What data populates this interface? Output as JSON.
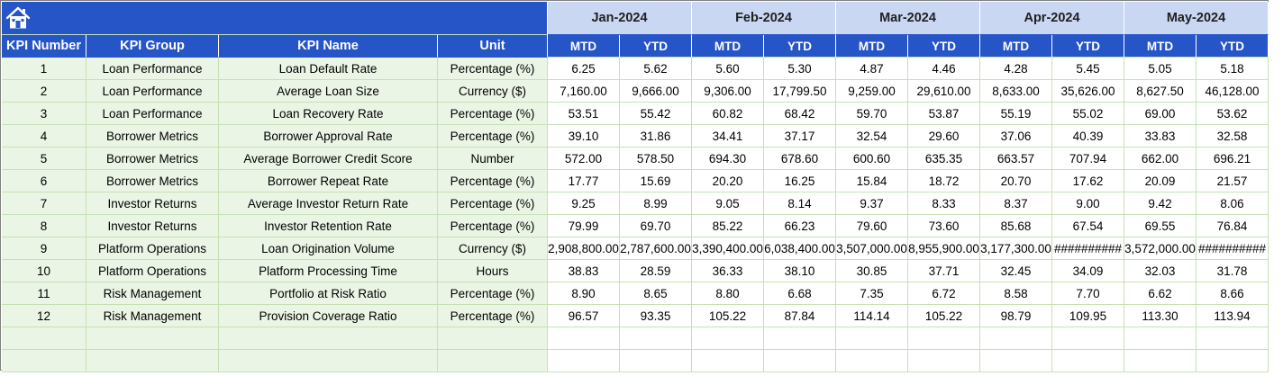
{
  "colors": {
    "header_blue": "#2655c8",
    "month_bg": "#c9d7f2",
    "left_bg": "#ebf5e6",
    "gridline": "#c6e0b4"
  },
  "icons": {
    "home": "home-icon"
  },
  "months": [
    "Jan-2024",
    "Feb-2024",
    "Mar-2024",
    "Apr-2024",
    "May-2024"
  ],
  "columns": {
    "kpi_number": "KPI Number",
    "kpi_group": "KPI Group",
    "kpi_name": "KPI Name",
    "unit": "Unit",
    "mtd": "MTD",
    "ytd": "YTD"
  },
  "rows": [
    {
      "num": "1",
      "group": "Loan Performance",
      "name": "Loan Default Rate",
      "unit": "Percentage (%)",
      "values": [
        "6.25",
        "5.62",
        "5.60",
        "5.30",
        "4.87",
        "4.46",
        "4.28",
        "5.45",
        "5.05",
        "5.18"
      ]
    },
    {
      "num": "2",
      "group": "Loan Performance",
      "name": "Average Loan Size",
      "unit": "Currency ($)",
      "values": [
        "7,160.00",
        "9,666.00",
        "9,306.00",
        "17,799.50",
        "9,259.00",
        "29,610.00",
        "8,633.00",
        "35,626.00",
        "8,627.50",
        "46,128.00"
      ]
    },
    {
      "num": "3",
      "group": "Loan Performance",
      "name": "Loan Recovery Rate",
      "unit": "Percentage (%)",
      "values": [
        "53.51",
        "55.42",
        "60.82",
        "68.42",
        "59.70",
        "53.87",
        "55.19",
        "55.02",
        "69.00",
        "53.62"
      ]
    },
    {
      "num": "4",
      "group": "Borrower Metrics",
      "name": "Borrower Approval Rate",
      "unit": "Percentage (%)",
      "values": [
        "39.10",
        "31.86",
        "34.41",
        "37.17",
        "32.54",
        "29.60",
        "37.06",
        "40.39",
        "33.83",
        "32.58"
      ]
    },
    {
      "num": "5",
      "group": "Borrower Metrics",
      "name": "Average Borrower Credit Score",
      "unit": "Number",
      "values": [
        "572.00",
        "578.50",
        "694.30",
        "678.60",
        "600.60",
        "635.35",
        "663.57",
        "707.94",
        "662.00",
        "696.21"
      ]
    },
    {
      "num": "6",
      "group": "Borrower Metrics",
      "name": "Borrower Repeat Rate",
      "unit": "Percentage (%)",
      "values": [
        "17.77",
        "15.69",
        "20.20",
        "16.25",
        "15.84",
        "18.72",
        "20.70",
        "17.62",
        "20.09",
        "21.57"
      ]
    },
    {
      "num": "7",
      "group": "Investor Returns",
      "name": "Average Investor Return Rate",
      "unit": "Percentage (%)",
      "values": [
        "9.25",
        "8.99",
        "9.05",
        "8.14",
        "9.37",
        "8.33",
        "8.37",
        "9.00",
        "9.42",
        "8.06"
      ]
    },
    {
      "num": "8",
      "group": "Investor Returns",
      "name": "Investor Retention Rate",
      "unit": "Percentage (%)",
      "values": [
        "79.99",
        "69.70",
        "85.22",
        "66.23",
        "79.60",
        "73.60",
        "85.68",
        "67.54",
        "69.55",
        "76.84"
      ]
    },
    {
      "num": "9",
      "group": "Platform Operations",
      "name": "Loan Origination Volume",
      "unit": "Currency ($)",
      "values": [
        "2,908,800.00",
        "2,787,600.00",
        "3,390,400.00",
        "6,038,400.00",
        "3,507,000.00",
        "8,955,900.00",
        "3,177,300.00",
        "##########",
        "3,572,000.00",
        "##########"
      ]
    },
    {
      "num": "10",
      "group": "Platform Operations",
      "name": "Platform Processing Time",
      "unit": "Hours",
      "values": [
        "38.83",
        "28.59",
        "36.33",
        "38.10",
        "30.85",
        "37.71",
        "32.45",
        "34.09",
        "32.03",
        "31.78"
      ]
    },
    {
      "num": "11",
      "group": "Risk Management",
      "name": "Portfolio at Risk Ratio",
      "unit": "Percentage (%)",
      "values": [
        "8.90",
        "8.65",
        "8.80",
        "6.68",
        "7.35",
        "6.72",
        "8.58",
        "7.70",
        "6.62",
        "8.66"
      ]
    },
    {
      "num": "12",
      "group": "Risk Management",
      "name": "Provision Coverage Ratio",
      "unit": "Percentage (%)",
      "values": [
        "96.57",
        "93.35",
        "105.22",
        "87.84",
        "114.14",
        "105.22",
        "98.79",
        "109.95",
        "113.30",
        "113.94"
      ]
    }
  ],
  "blank_rows": 2
}
